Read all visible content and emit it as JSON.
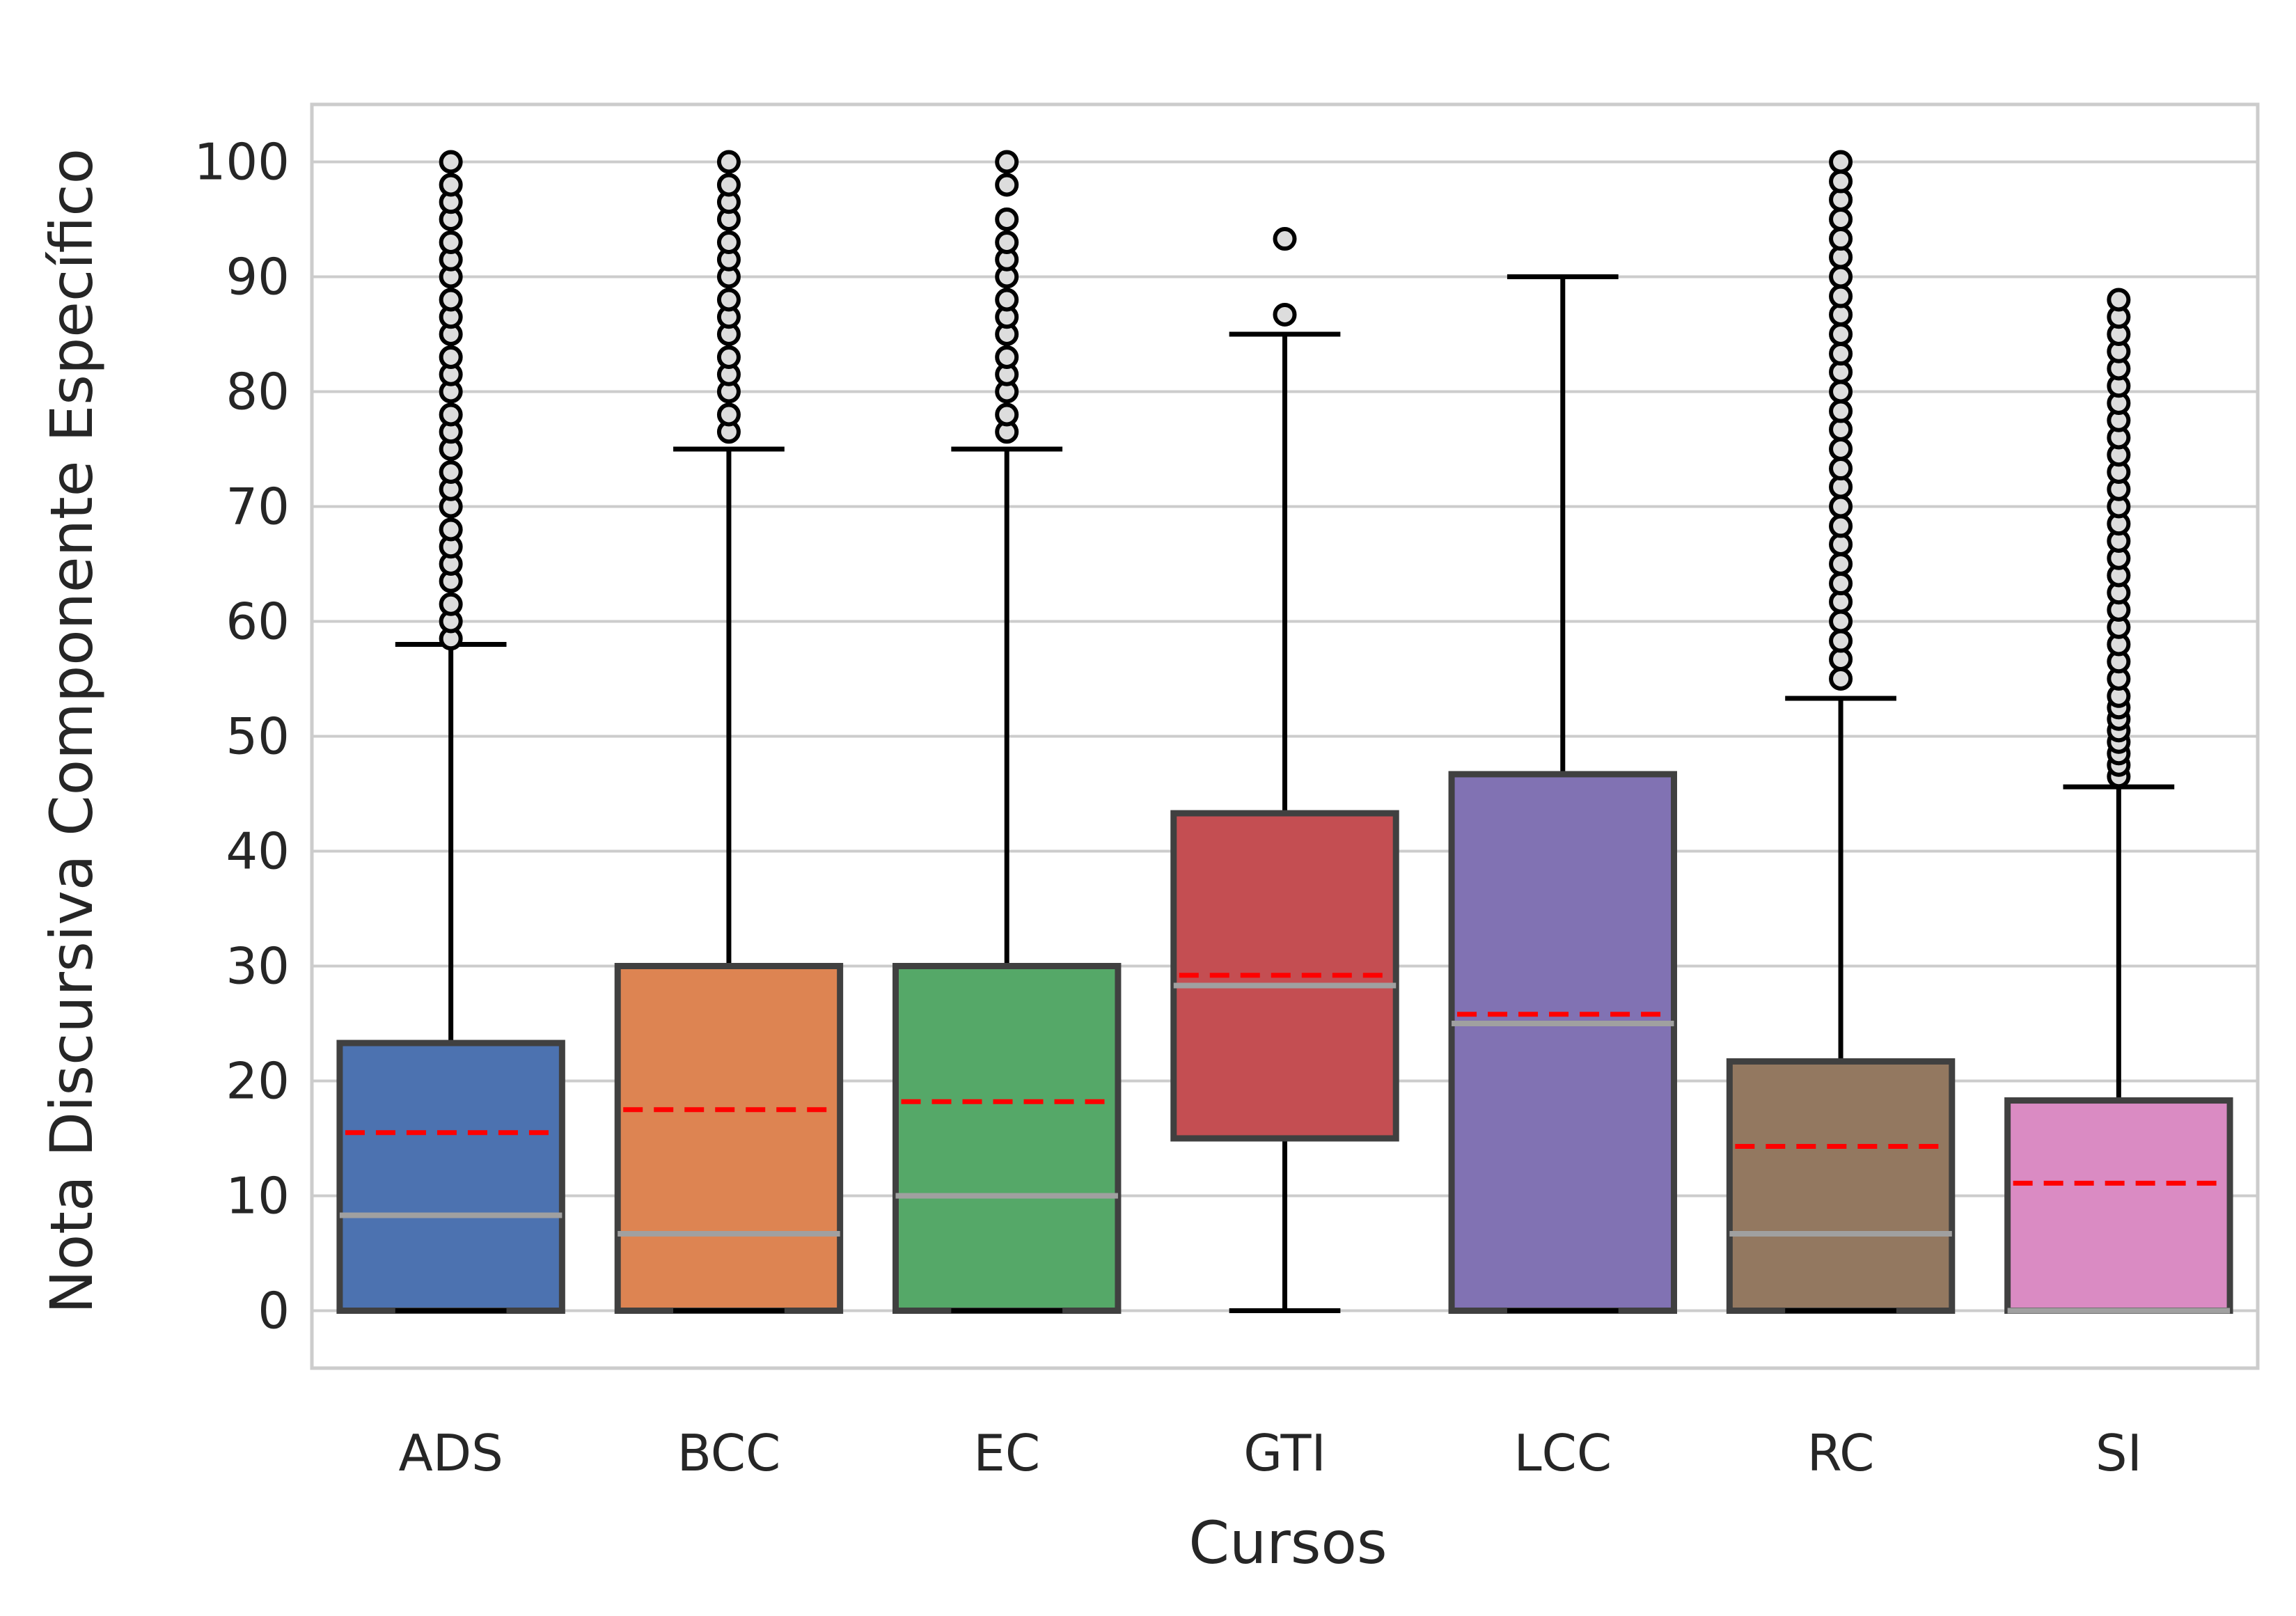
{
  "chart_data": {
    "type": "box",
    "title": "",
    "xlabel": "Cursos",
    "ylabel": "Nota Discursiva Componente Específico",
    "ylim": [
      -5,
      105
    ],
    "yticks": [
      0,
      10,
      20,
      30,
      40,
      50,
      60,
      70,
      80,
      90,
      100
    ],
    "grid": "horizontal",
    "legend": "none",
    "colors": {
      "grid": "#cccccc",
      "box_edge": "#404040",
      "whisker": "#000000",
      "median": "#a0a0a0",
      "mean": "#ff0000",
      "flier_fill": "#dddddd",
      "flier_edge": "#000000"
    },
    "categories": [
      "ADS",
      "BCC",
      "EC",
      "GTI",
      "LCC",
      "RC",
      "SI"
    ],
    "boxes": [
      {
        "name": "ADS",
        "color": "#4c72b0",
        "q1": 0,
        "median": 8.3,
        "q3": 23.3,
        "whislo": 0,
        "whishi": 58,
        "mean": 15.5,
        "fliers": [
          58.5,
          60,
          61.5,
          63.5,
          65,
          66.5,
          68,
          70,
          71.5,
          73,
          75,
          76.5,
          78,
          80,
          81.5,
          83,
          85,
          86.5,
          88,
          90,
          91.5,
          93,
          95,
          96.5,
          98,
          100
        ]
      },
      {
        "name": "BCC",
        "color": "#dd8452",
        "q1": 0,
        "median": 6.7,
        "q3": 30,
        "whislo": 0,
        "whishi": 75,
        "mean": 17.5,
        "fliers": [
          76.5,
          78,
          80,
          81.5,
          83,
          85,
          86.5,
          88,
          90,
          91.5,
          93,
          95,
          96.5,
          98,
          100
        ]
      },
      {
        "name": "EC",
        "color": "#55a868",
        "q1": 0,
        "median": 10,
        "q3": 30,
        "whislo": 0,
        "whishi": 75,
        "mean": 18.2,
        "fliers": [
          76.5,
          78,
          80,
          81.5,
          83,
          85,
          86.5,
          88,
          90,
          91.5,
          93,
          95,
          98,
          100
        ]
      },
      {
        "name": "GTI",
        "color": "#c44e52",
        "q1": 15,
        "median": 28.3,
        "q3": 43.3,
        "whislo": 0,
        "whishi": 85,
        "mean": 29.2,
        "fliers": [
          86.7,
          93.3
        ]
      },
      {
        "name": "LCC",
        "color": "#8172b3",
        "q1": 0,
        "median": 25,
        "q3": 46.7,
        "whislo": 0,
        "whishi": 90,
        "mean": 25.8,
        "fliers": []
      },
      {
        "name": "RC",
        "color": "#937860",
        "q1": 0,
        "median": 6.7,
        "q3": 21.7,
        "whislo": 0,
        "whishi": 53.3,
        "mean": 14.3,
        "fliers": [
          55,
          56.7,
          58.3,
          60,
          61.7,
          63.3,
          65,
          66.7,
          68.3,
          70,
          71.7,
          73.3,
          75,
          76.7,
          78.3,
          80,
          81.7,
          83.3,
          85,
          86.7,
          88.3,
          90,
          91.7,
          93.3,
          95,
          96.7,
          98.3,
          100
        ]
      },
      {
        "name": "SI",
        "color": "#da8bc3",
        "q1": 0,
        "median": 0,
        "q3": 18.3,
        "whislo": 0,
        "whishi": 45.6,
        "mean": 11.1,
        "fliers": [
          46.5,
          47.5,
          48.5,
          49.5,
          50.5,
          51.5,
          52.5,
          53.5,
          55,
          56.5,
          58,
          59.5,
          61,
          62.5,
          64,
          65.5,
          67,
          68.5,
          70,
          71.5,
          73,
          74.5,
          76,
          77.5,
          79,
          80.5,
          82,
          83.5,
          85,
          86.5,
          88
        ]
      }
    ]
  }
}
